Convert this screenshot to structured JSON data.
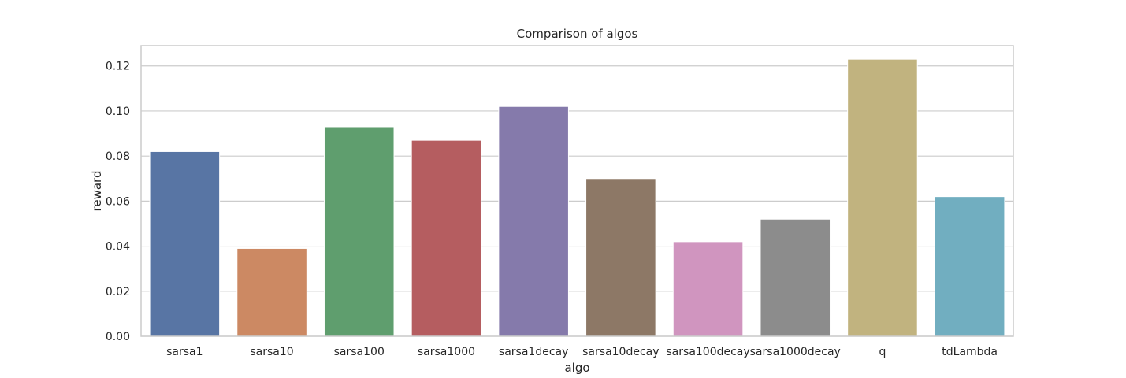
{
  "chart_data": {
    "type": "bar",
    "title": "Comparison of algos",
    "xlabel": "algo",
    "ylabel": "reward",
    "categories": [
      "sarsa1",
      "sarsa10",
      "sarsa100",
      "sarsa1000",
      "sarsa1decay",
      "sarsa10decay",
      "sarsa100decay",
      "sarsa1000decay",
      "q",
      "tdLambda"
    ],
    "values": [
      0.082,
      0.039,
      0.093,
      0.087,
      0.102,
      0.07,
      0.042,
      0.052,
      0.123,
      0.062
    ],
    "colors": [
      "#5875a4",
      "#cc8963",
      "#5f9e6e",
      "#b55d60",
      "#857aab",
      "#8d7866",
      "#d095bf",
      "#8c8c8c",
      "#c1b37f",
      "#71aec0"
    ],
    "ylim": [
      0,
      0.129
    ],
    "yticks": [
      "0.00",
      "0.02",
      "0.04",
      "0.06",
      "0.08",
      "0.10",
      "0.12"
    ],
    "grid": true,
    "grid_axis": "y"
  }
}
